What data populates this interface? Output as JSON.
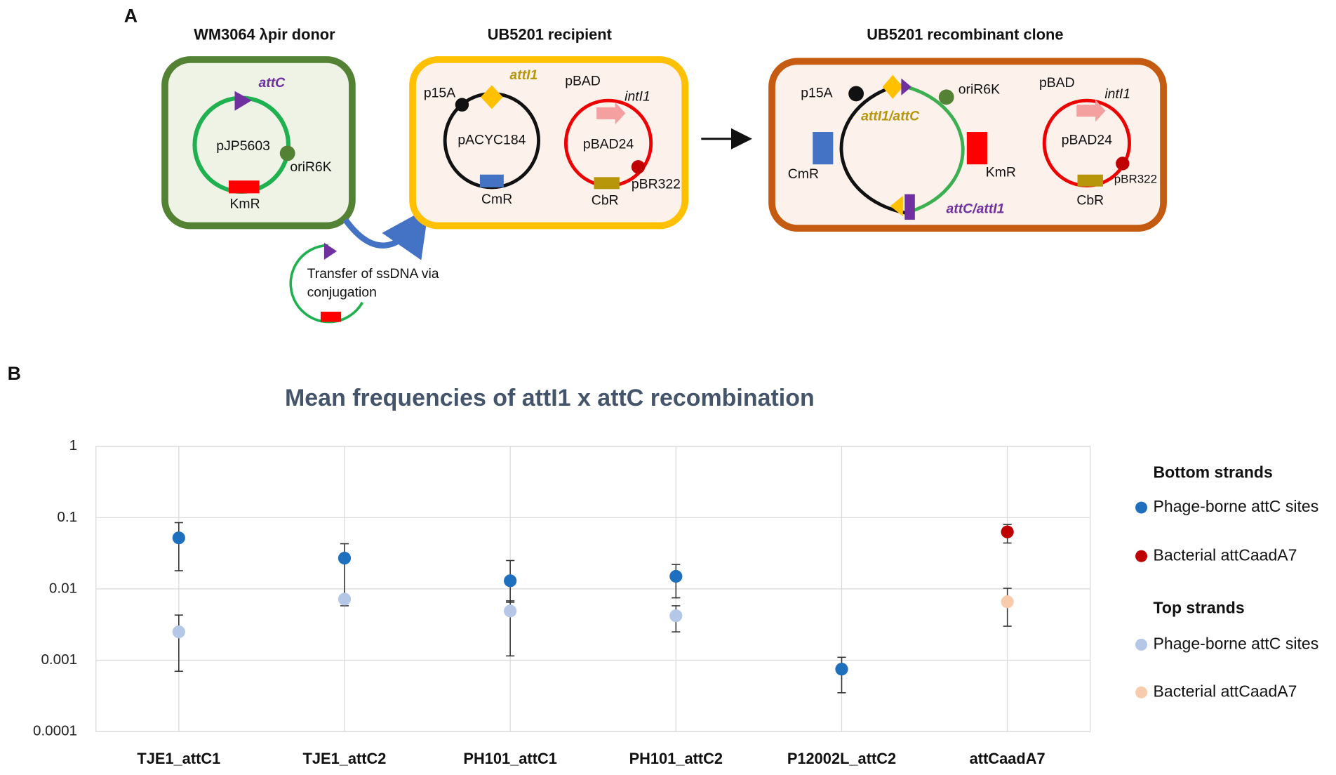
{
  "panel_labels": [
    "A",
    "B"
  ],
  "diagram": {
    "donor": {
      "title": "WM3064 λpir donor",
      "site": "attC",
      "plasmid": "pJP5603",
      "origin": "oriR6K",
      "marker": "KmR"
    },
    "transfer": {
      "line1": "Transfer of ssDNA via",
      "line2": "conjugation"
    },
    "recipient": {
      "title": "UB5201 recipient",
      "site": "attI1",
      "origin": "p15A",
      "plasmid": "pACYC184",
      "marker": "CmR",
      "promoter": "pBAD",
      "gene": "intI1",
      "plasmid2": "pBAD24",
      "origin2": "pBR322",
      "marker2": "CbR"
    },
    "recombinant": {
      "title": "UB5201 recombinant clone",
      "origin": "p15A",
      "site1": "attI1/attC",
      "origin_r6k": "oriR6K",
      "marker_cm": "CmR",
      "marker_km": "KmR",
      "site2": "attC/attI1",
      "promoter": "pBAD",
      "gene": "intI1",
      "plasmid2": "pBAD24",
      "origin2": "pBR322",
      "marker2": "CbR"
    }
  },
  "chart_data": {
    "type": "scatter",
    "title": "Mean frequencies of attI1 x attC recombination",
    "categories": [
      "TJE1_attC1",
      "TJE1_attC2",
      "PH101_attC1",
      "PH101_attC2",
      "P12002L_attC2",
      "attCaadA7"
    ],
    "log_scale": true,
    "grid": true,
    "legend": "right",
    "ylim": [
      0.0001,
      1
    ],
    "yticks": [
      0.0001,
      0.001,
      0.01,
      0.1,
      1
    ],
    "legend_groups": [
      "Bottom strands",
      "Top strands"
    ],
    "series": [
      {
        "name": "Phage-borne attC sites",
        "color": "#1f6fbf",
        "values": [
          0.052,
          0.027,
          0.013,
          0.015,
          0.00075,
          null
        ],
        "errors_lower": [
          0.018,
          0.0078,
          0.0065,
          0.0075,
          0.00035,
          null
        ],
        "errors_upper": [
          0.085,
          0.043,
          0.025,
          0.022,
          0.0011,
          null
        ]
      },
      {
        "name": "Bacterial attCaadA7",
        "color": "#c00000",
        "values": [
          null,
          null,
          null,
          null,
          null,
          0.063
        ],
        "errors_lower": [
          null,
          null,
          null,
          null,
          null,
          0.044
        ],
        "errors_upper": [
          null,
          null,
          null,
          null,
          null,
          0.08
        ]
      },
      {
        "name": "Phage-borne attC sites",
        "color": "#b4c7e7",
        "values": [
          0.0025,
          0.0072,
          0.0049,
          0.0042,
          null,
          null
        ],
        "errors_lower": [
          0.0007,
          0.0058,
          0.00115,
          0.0025,
          null,
          null
        ],
        "errors_upper": [
          0.0043,
          0.0078,
          0.0068,
          0.0058,
          null,
          null
        ]
      },
      {
        "name": "Bacterial attCaadA7",
        "color": "#f8cbad",
        "values": [
          null,
          null,
          null,
          null,
          null,
          0.0066
        ],
        "errors_lower": [
          null,
          null,
          null,
          null,
          null,
          0.003
        ],
        "errors_upper": [
          null,
          null,
          null,
          null,
          null,
          0.0102
        ]
      }
    ]
  }
}
